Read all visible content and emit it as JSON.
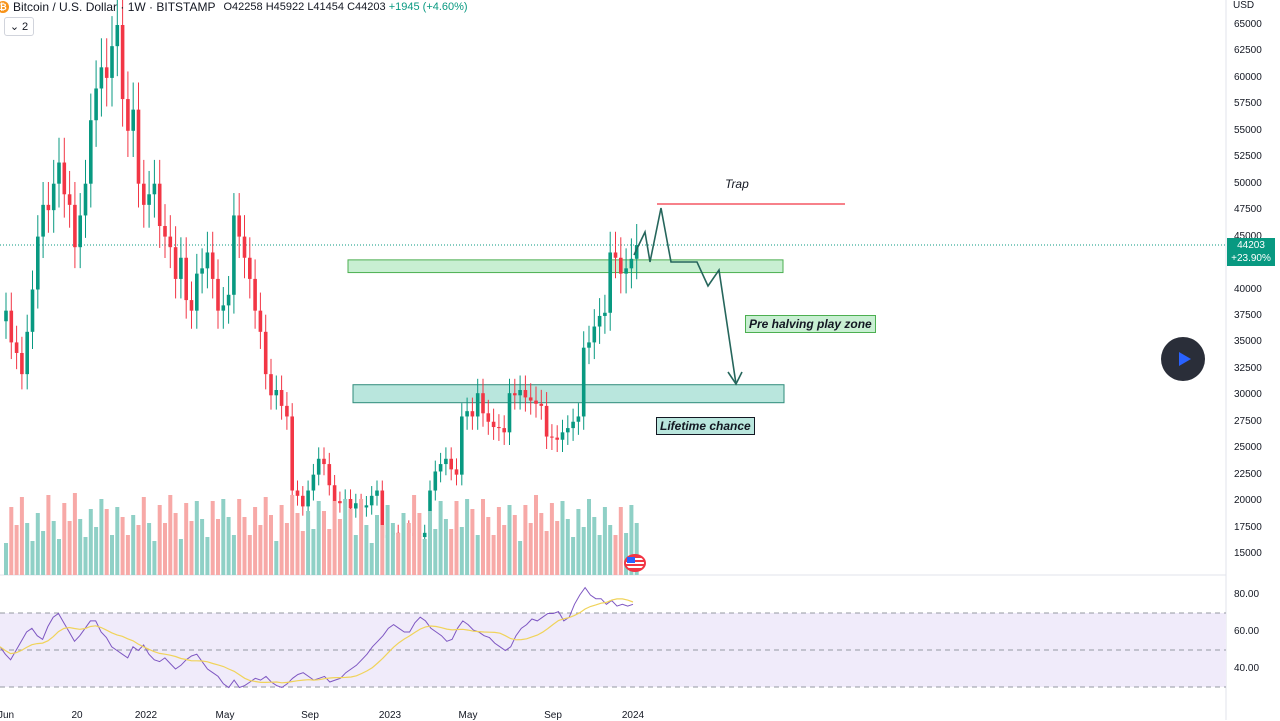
{
  "header": {
    "title": "Bitcoin / U.S. Dollar · 1W · BITSTAMP",
    "open": "O42258",
    "high": "H45922",
    "low": "L41454",
    "close": "C44203",
    "change": "+1945 (+4.60%)",
    "badge_count": "2",
    "badge_chevron": "⌄"
  },
  "price_axis": {
    "unit": "USD",
    "ticks": [
      "65000",
      "62500",
      "60000",
      "57500",
      "55000",
      "52500",
      "50000",
      "47500",
      "45000",
      "42500",
      "40000",
      "37500",
      "35000",
      "32500",
      "30000",
      "27500",
      "25000",
      "22500",
      "20000",
      "17500",
      "15000"
    ]
  },
  "rsi_axis": {
    "ticks": [
      "80.00",
      "60.00",
      "40.00"
    ]
  },
  "time_axis": {
    "ticks": [
      "Jun",
      "20",
      "2022",
      "May",
      "Sep",
      "2023",
      "May",
      "Sep",
      "2024"
    ]
  },
  "last_price": {
    "value": "44203",
    "change": "+23.90%"
  },
  "annotations": {
    "trap": "Trap",
    "pre_halving": "Pre halving play zone",
    "lifetime": "Lifetime chance"
  },
  "colors": {
    "up": "#089981",
    "down": "#f23645",
    "volume_up": "#8fd0c6",
    "volume_down": "#f7a9a7",
    "rsi_line": "#7e57c2",
    "rsi_ma": "#f0d35a",
    "rsi_band": "#f0ebfa",
    "zone_green": "#c8efd2",
    "zone_teal": "#b9e6dd",
    "projection": "#26665c",
    "trap_line": "#f23645"
  },
  "icons": {
    "symbol": "bitcoin-icon",
    "play": "play-icon",
    "event": "us-flag-icon"
  }
}
